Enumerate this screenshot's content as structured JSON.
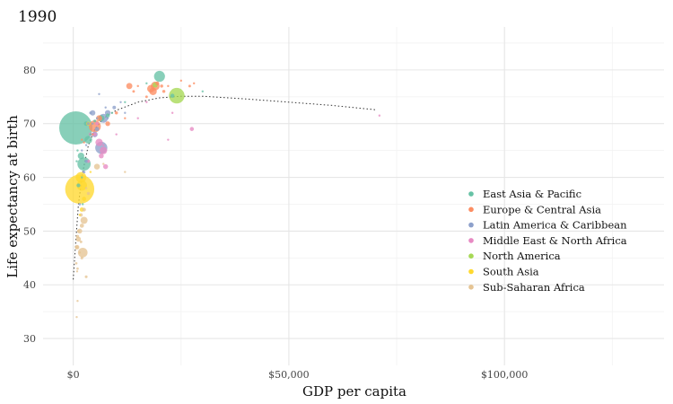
{
  "chart_data": {
    "type": "scatter",
    "title": "1990",
    "xlabel": "GDP per capita",
    "ylabel": "Life expectancy at birth",
    "xlim": [
      -7000,
      137000
    ],
    "ylim": [
      25,
      88
    ],
    "x_ticks": [
      0,
      50000,
      100000
    ],
    "x_tick_labels": [
      "$0",
      "$50,000",
      "$100,000"
    ],
    "x_minor_ticks": [
      25000,
      75000,
      125000
    ],
    "y_ticks": [
      30,
      40,
      50,
      60,
      70,
      80
    ],
    "y_tick_labels": [
      "30",
      "40",
      "50",
      "60",
      "70",
      "80"
    ],
    "y_minor_ticks": [
      35,
      45,
      55,
      65,
      75,
      85
    ],
    "grid": true,
    "legend_position": "right",
    "series": [
      {
        "name": "East Asia & Pacific",
        "color": "#66c2a5",
        "points": [
          [
            600,
            69.2,
            1135
          ],
          [
            20000,
            78.8,
            124
          ],
          [
            2500,
            62.5,
            180
          ],
          [
            6500,
            71,
            43
          ],
          [
            8000,
            71.5,
            18
          ],
          [
            3500,
            67,
            61
          ],
          [
            1800,
            64,
            44
          ],
          [
            3000,
            70,
            21
          ],
          [
            23000,
            75.2,
            17
          ],
          [
            2000,
            60,
            4
          ],
          [
            12000,
            74,
            3
          ],
          [
            1000,
            65,
            5
          ],
          [
            17000,
            77.5,
            4
          ],
          [
            5000,
            70.5,
            8
          ],
          [
            1200,
            58.5,
            15
          ],
          [
            800,
            63,
            5
          ],
          [
            4000,
            68,
            6
          ],
          [
            30000,
            76,
            3
          ],
          [
            2200,
            55,
            2
          ],
          [
            9000,
            72,
            2
          ]
        ]
      },
      {
        "name": "Europe & Central Asia",
        "color": "#fc8d62",
        "points": [
          [
            18000,
            76.5,
            57
          ],
          [
            19000,
            77,
            79
          ],
          [
            18500,
            76,
            58
          ],
          [
            6000,
            71,
            38
          ],
          [
            13000,
            77,
            39
          ],
          [
            19500,
            77.5,
            15
          ],
          [
            20500,
            77,
            10
          ],
          [
            21000,
            76,
            10
          ],
          [
            17000,
            75,
            7
          ],
          [
            15000,
            77,
            5
          ],
          [
            5000,
            69.5,
            148
          ],
          [
            8000,
            70,
            23
          ],
          [
            27000,
            77,
            7
          ],
          [
            28000,
            77.5,
            4
          ],
          [
            22000,
            77,
            5
          ],
          [
            10000,
            72,
            10
          ],
          [
            4500,
            68,
            5
          ],
          [
            2500,
            66.5,
            5
          ],
          [
            2000,
            67,
            4
          ],
          [
            14000,
            76,
            7
          ],
          [
            25000,
            78,
            3
          ],
          [
            12000,
            71,
            3
          ]
        ]
      },
      {
        "name": "Latin America & Caribbean",
        "color": "#8da0cb",
        "points": [
          [
            6500,
            65.5,
            150
          ],
          [
            7000,
            71,
            84
          ],
          [
            8000,
            72,
            33
          ],
          [
            5000,
            68,
            33
          ],
          [
            4500,
            72,
            30
          ],
          [
            5500,
            69,
            20
          ],
          [
            9500,
            73,
            13
          ],
          [
            3000,
            63,
            10
          ],
          [
            2500,
            61,
            8
          ],
          [
            4000,
            72,
            7
          ],
          [
            1500,
            55,
            6
          ],
          [
            3500,
            70,
            9
          ],
          [
            2000,
            65,
            5
          ],
          [
            6000,
            75.5,
            3
          ],
          [
            7500,
            73,
            3
          ],
          [
            11000,
            74,
            2
          ],
          [
            5500,
            71,
            2
          ],
          [
            3000,
            66,
            2
          ],
          [
            4500,
            70,
            2
          ],
          [
            8000,
            71,
            2
          ],
          [
            12000,
            72,
            2
          ]
        ]
      },
      {
        "name": "Middle East & North Africa",
        "color": "#e78ac3",
        "points": [
          [
            7000,
            65,
            57
          ],
          [
            6000,
            66.5,
            56
          ],
          [
            6500,
            64,
            25
          ],
          [
            5000,
            68,
            17
          ],
          [
            27500,
            69,
            17
          ],
          [
            7500,
            62,
            25
          ],
          [
            4000,
            68,
            14
          ],
          [
            5500,
            70,
            12
          ],
          [
            22000,
            67,
            2
          ],
          [
            10000,
            68,
            3
          ],
          [
            17000,
            74,
            5
          ],
          [
            3500,
            63,
            12
          ],
          [
            7000,
            66,
            4
          ],
          [
            71000,
            71.5,
            2
          ],
          [
            23000,
            72,
            2
          ],
          [
            15000,
            71,
            3
          ]
        ]
      },
      {
        "name": "North America",
        "color": "#a6d854",
        "points": [
          [
            24000,
            75.2,
            250
          ],
          [
            19000,
            77.2,
            28
          ]
        ]
      },
      {
        "name": "South Asia",
        "color": "#ffd92f",
        "points": [
          [
            1500,
            57.8,
            870
          ],
          [
            2000,
            58.5,
            108
          ],
          [
            1800,
            60,
            115
          ],
          [
            2500,
            56,
            18
          ],
          [
            3500,
            70,
            17
          ],
          [
            2000,
            54,
            19
          ],
          [
            1500,
            53,
            4
          ],
          [
            4000,
            61,
            2
          ]
        ]
      },
      {
        "name": "Sub-Saharan Africa",
        "color": "#e5c494",
        "points": [
          [
            2200,
            46,
            95
          ],
          [
            5500,
            62,
            35
          ],
          [
            2500,
            52,
            52
          ],
          [
            800,
            47,
            15
          ],
          [
            1200,
            48.5,
            25
          ],
          [
            1500,
            50,
            25
          ],
          [
            900,
            47,
            20
          ],
          [
            2000,
            51,
            18
          ],
          [
            1000,
            49,
            10
          ],
          [
            2500,
            54,
            15
          ],
          [
            1800,
            53,
            12
          ],
          [
            3000,
            41.5,
            8
          ],
          [
            1000,
            43,
            6
          ],
          [
            800,
            34,
            3
          ],
          [
            1000,
            37,
            2
          ],
          [
            2000,
            45,
            8
          ],
          [
            1500,
            46,
            5
          ],
          [
            700,
            44,
            6
          ],
          [
            12000,
            61,
            2
          ],
          [
            7000,
            62.5,
            2
          ],
          [
            1200,
            50,
            8
          ],
          [
            3500,
            57,
            10
          ],
          [
            1800,
            48,
            7
          ],
          [
            900,
            42.5,
            4
          ],
          [
            3000,
            58,
            3
          ]
        ]
      }
    ],
    "trend": [
      [
        0,
        41
      ],
      [
        500,
        47
      ],
      [
        1200,
        55
      ],
      [
        2200,
        61
      ],
      [
        3500,
        66
      ],
      [
        5000,
        69
      ],
      [
        7000,
        71
      ],
      [
        10000,
        72.5
      ],
      [
        15000,
        74
      ],
      [
        20000,
        74.8
      ],
      [
        25000,
        75.1
      ],
      [
        30000,
        75.1
      ],
      [
        40000,
        74.6
      ],
      [
        50000,
        74
      ],
      [
        60000,
        73.4
      ],
      [
        70000,
        72.6
      ]
    ]
  }
}
